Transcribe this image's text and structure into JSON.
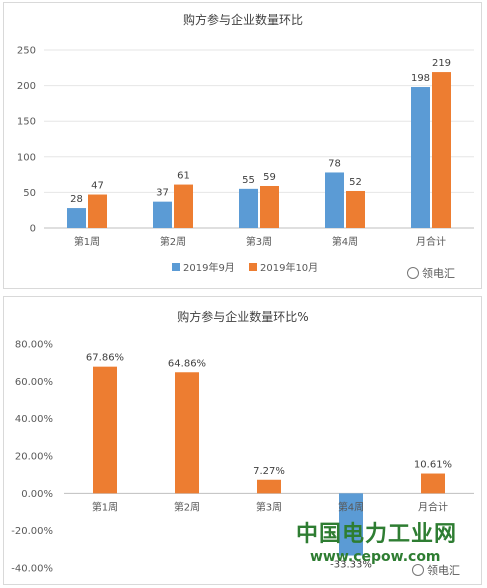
{
  "chart_data": [
    {
      "type": "bar",
      "title": "购方参与企业数量环比",
      "categories": [
        "第1周",
        "第2周",
        "第3周",
        "第4周",
        "月合计"
      ],
      "series": [
        {
          "name": "2019年9月",
          "values": [
            28,
            37,
            55,
            78,
            198
          ],
          "color": "#5b9bd5"
        },
        {
          "name": "2019年10月",
          "values": [
            47,
            61,
            59,
            52,
            219
          ],
          "color": "#ed7d31"
        }
      ],
      "ylim": [
        0,
        250
      ],
      "yticks": [
        "0",
        "50",
        "100",
        "150",
        "200",
        "250"
      ],
      "grid": true,
      "legend": "bottom"
    },
    {
      "type": "bar",
      "title": "购方参与企业数量环比%",
      "categories": [
        "第1周",
        "第2周",
        "第3周",
        "第4周",
        "月合计"
      ],
      "values": [
        67.86,
        64.86,
        7.27,
        -33.33,
        10.61
      ],
      "labels": [
        "67.86%",
        "64.86%",
        "7.27%",
        "-33.33%",
        "10.61%"
      ],
      "positive_color": "#ed7d31",
      "negative_color": "#5b9bd5",
      "ylim": [
        -40,
        80
      ],
      "yticks": [
        "80.00%",
        "60.00%",
        "40.00%",
        "20.00%",
        "0.00%",
        "-20.00%",
        "-40.00%"
      ]
    }
  ],
  "brand": "领电汇",
  "watermark": {
    "cn": "中国电力工业网",
    "url": "www.cepow.com"
  }
}
